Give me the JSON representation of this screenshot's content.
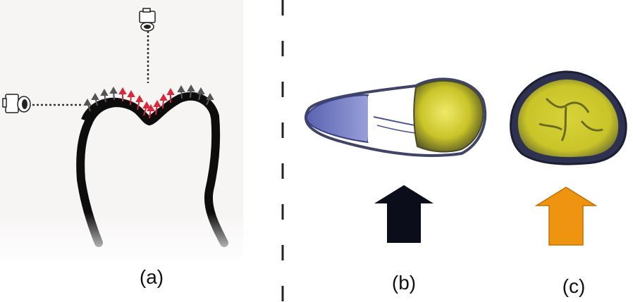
{
  "captions": {
    "a": "(a)",
    "b": "(b)",
    "c": "(c)"
  },
  "colors": {
    "tooth_outline": "#0d0d0d",
    "occlusal_arrows": "#d8283c",
    "side_arrows": "#555555",
    "root_blue": "#6f79c4",
    "crown_yellow": "#c9c428",
    "arrow_b": "#0b0d1a",
    "arrow_c": "#ef9410"
  },
  "icons": {
    "top_camera": "camera-icon",
    "side_camera": "camera-icon"
  }
}
